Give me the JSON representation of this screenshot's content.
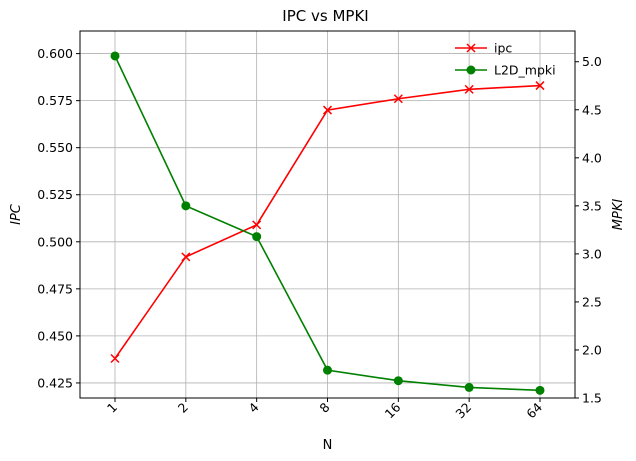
{
  "chart_data": {
    "type": "line",
    "title": "IPC vs MPKI",
    "xlabel": "N",
    "ylabel_left": "IPC",
    "ylabel_right": "MPKI",
    "categories": [
      "1",
      "2",
      "4",
      "8",
      "16",
      "32",
      "64"
    ],
    "series": [
      {
        "name": "ipc",
        "axis": "left",
        "color": "#ff0000",
        "marker": "x",
        "values": [
          0.438,
          0.492,
          0.509,
          0.57,
          0.576,
          0.581,
          0.583
        ]
      },
      {
        "name": "L2D_mpki",
        "axis": "right",
        "color": "#008000",
        "marker": "circle",
        "values": [
          5.06,
          3.5,
          3.18,
          1.79,
          1.68,
          1.61,
          1.58
        ]
      }
    ],
    "ylim_left": [
      0.417,
      0.612
    ],
    "ylim_right": [
      1.5,
      5.32
    ],
    "yticks_left": [
      "0.425",
      "0.450",
      "0.475",
      "0.500",
      "0.525",
      "0.550",
      "0.575",
      "0.600"
    ],
    "yticks_right": [
      "1.5",
      "2.0",
      "2.5",
      "3.0",
      "3.5",
      "4.0",
      "4.5",
      "5.0"
    ],
    "grid": true,
    "legend_position": "top-right"
  }
}
